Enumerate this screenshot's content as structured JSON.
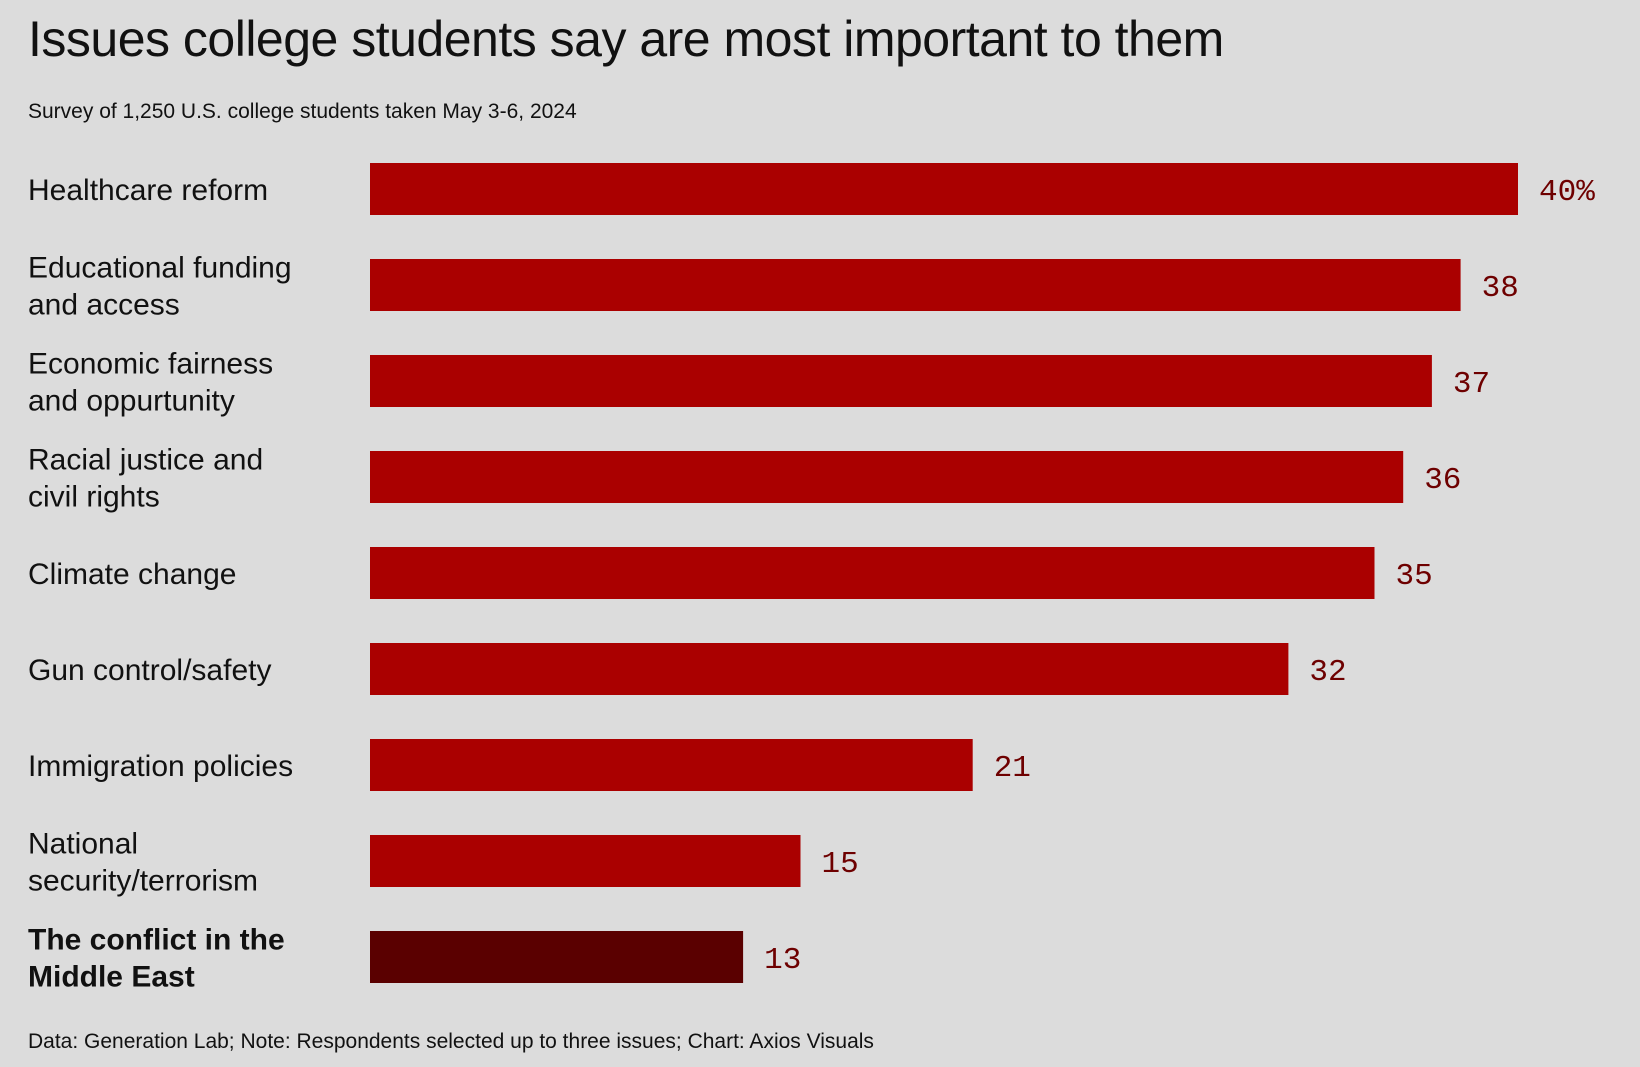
{
  "chart_data": {
    "type": "bar",
    "orientation": "horizontal",
    "title": "Issues college students say are most important to them",
    "subtitle": "Survey of 1,250 U.S. college students taken May 3-6, 2024",
    "footer": "Data: Generation Lab; Note: Respondents selected up to three issues; Chart: Axios Visuals",
    "categories": [
      [
        "Healthcare reform"
      ],
      [
        "Educational funding",
        "and access"
      ],
      [
        "Economic fairness",
        "and oppurtunity"
      ],
      [
        "Racial justice and",
        "civil rights"
      ],
      [
        "Climate change"
      ],
      [
        "Gun control/safety"
      ],
      [
        "Immigration policies"
      ],
      [
        "National",
        "security/terrorism"
      ],
      [
        "The conflict in the",
        "Middle East"
      ]
    ],
    "values": [
      40,
      38,
      37,
      36,
      35,
      32,
      21,
      15,
      13
    ],
    "value_labels": [
      "40%",
      "38",
      "37",
      "36",
      "35",
      "32",
      "21",
      "15",
      "13"
    ],
    "highlight_index": 8,
    "xlim": [
      0,
      40
    ],
    "colors": {
      "bar": "#aa0000",
      "highlight": "#5a0000",
      "value_text": "#6e0000",
      "background": "#dcdcdc"
    },
    "grid": false,
    "legend": "none"
  }
}
